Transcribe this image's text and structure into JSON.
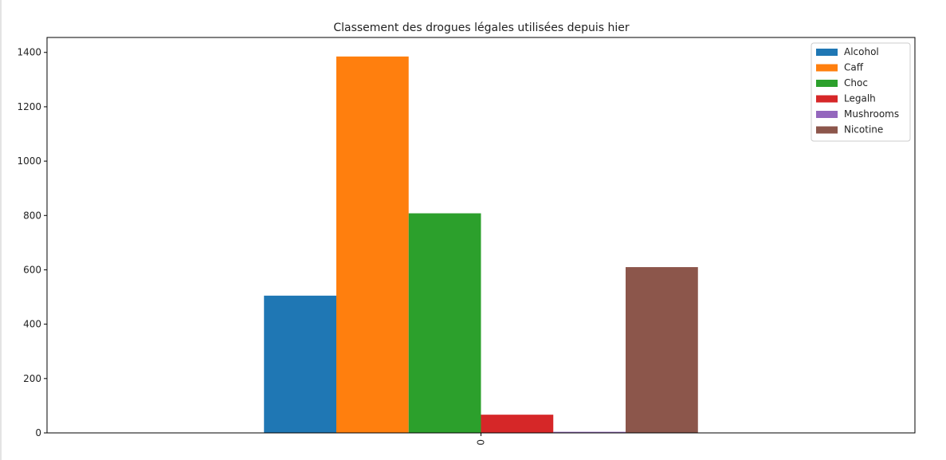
{
  "chart_data": {
    "type": "bar",
    "title": "Classement des drogues légales utilisées depuis hier",
    "xlabel": "",
    "ylabel": "",
    "categories": [
      "0"
    ],
    "series": [
      {
        "name": "Alcohol",
        "values": [
          505
        ],
        "color": "#1f77b4"
      },
      {
        "name": "Caff",
        "values": [
          1385
        ],
        "color": "#ff7f0e"
      },
      {
        "name": "Choc",
        "values": [
          808
        ],
        "color": "#2ca02c"
      },
      {
        "name": "Legalh",
        "values": [
          67
        ],
        "color": "#d62728"
      },
      {
        "name": "Mushrooms",
        "values": [
          4
        ],
        "color": "#9467bd"
      },
      {
        "name": "Nicotine",
        "values": [
          610
        ],
        "color": "#8c564b"
      }
    ],
    "yticks": [
      "0",
      "200",
      "400",
      "600",
      "800",
      "1000",
      "1200",
      "1400"
    ],
    "ylim": [
      0,
      1455
    ],
    "legend_position": "top-right",
    "grid": false
  }
}
